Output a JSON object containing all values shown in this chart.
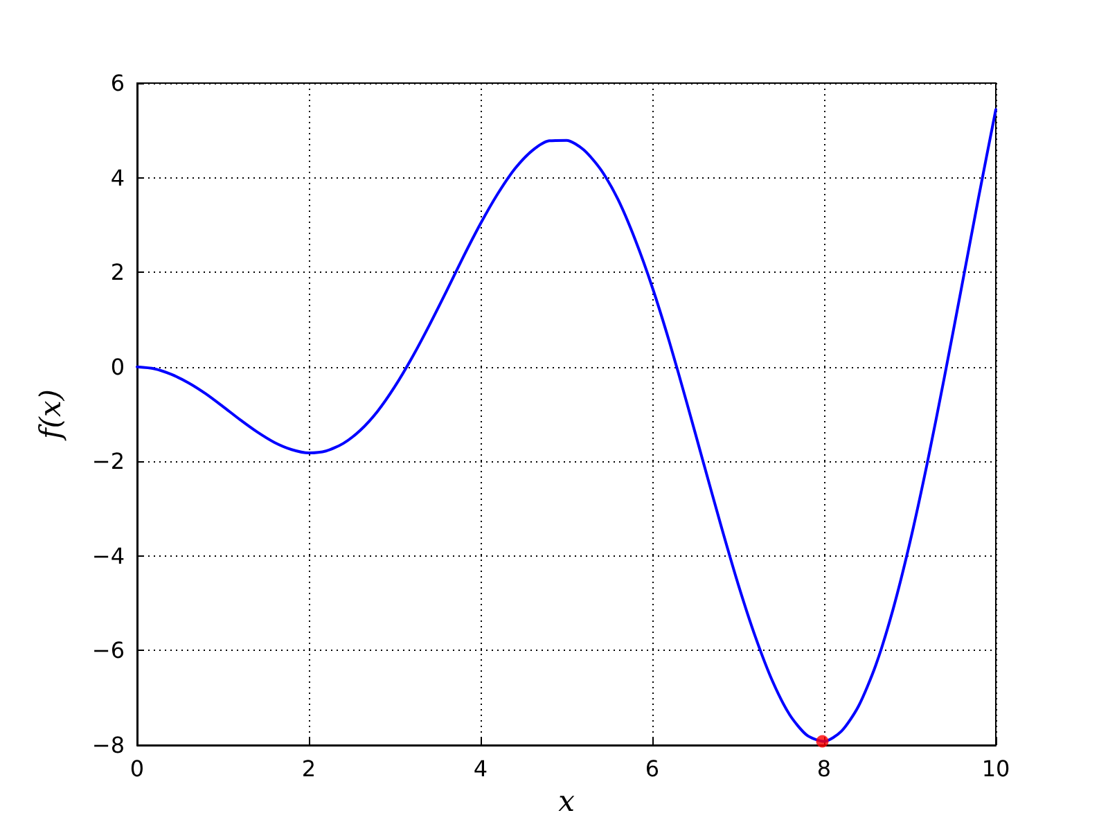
{
  "chart_data": {
    "type": "line",
    "xlabel": "x",
    "ylabel": "f(x)",
    "xlim": [
      0,
      10
    ],
    "xticks": [
      0,
      2,
      4,
      6,
      8,
      10
    ],
    "ylim": [
      -8,
      6
    ],
    "yticks": [
      -8,
      -6,
      -4,
      -2,
      0,
      2,
      4,
      6
    ],
    "grid": true,
    "line_style": "solid",
    "series": [
      {
        "color": "#0000ff",
        "marker": "none",
        "x": [
          0,
          0.2,
          0.4,
          0.6,
          0.8,
          1.0,
          1.2,
          1.4,
          1.6,
          1.8,
          2.0,
          2.2,
          2.4,
          2.6,
          2.8,
          3.0,
          3.2,
          3.4,
          3.6,
          3.8,
          4.0,
          4.2,
          4.4,
          4.6,
          4.8,
          5.0,
          5.2,
          5.4,
          5.6,
          5.8,
          6.0,
          6.2,
          6.4,
          6.6,
          6.8,
          7.0,
          7.2,
          7.4,
          7.6,
          7.8,
          8.0,
          8.2,
          8.4,
          8.6,
          8.8,
          9.0,
          9.2,
          9.4,
          9.6,
          9.8,
          10.0
        ],
        "values": [
          0,
          -0.04,
          -0.16,
          -0.34,
          -0.57,
          -0.84,
          -1.12,
          -1.38,
          -1.6,
          -1.75,
          -1.82,
          -1.78,
          -1.62,
          -1.34,
          -0.94,
          -0.42,
          0.19,
          0.87,
          1.59,
          2.33,
          3.03,
          3.66,
          4.19,
          4.57,
          4.78,
          4.79,
          4.59,
          4.17,
          3.54,
          2.69,
          1.68,
          0.52,
          -0.75,
          -2.06,
          -3.36,
          -4.6,
          -5.71,
          -6.65,
          -7.36,
          -7.79,
          -7.92,
          -7.71,
          -7.18,
          -6.32,
          -5.15,
          -3.71,
          -2.05,
          -0.23,
          1.67,
          3.59,
          5.44
        ]
      },
      {
        "type": "scatter",
        "color": "#ff0000",
        "marker": "circle",
        "x": [
          7.98
        ],
        "values": [
          -7.92
        ]
      }
    ]
  }
}
